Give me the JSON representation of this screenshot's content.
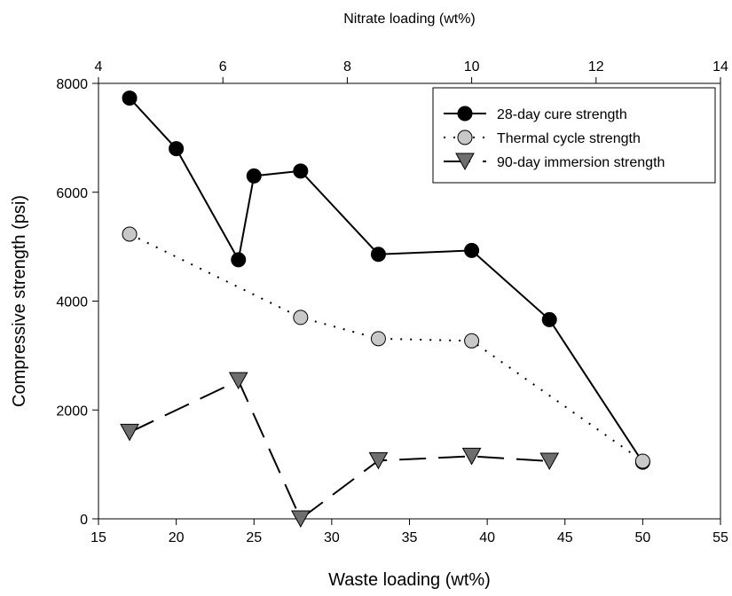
{
  "chart_data": {
    "type": "line",
    "xlabel": "Waste loading (wt%)",
    "ylabel": "Compressive strength (psi)",
    "x2label": "Nitrate loading (wt%)",
    "xlim": [
      15,
      55
    ],
    "ylim": [
      0,
      8000
    ],
    "x2lim": [
      4,
      14
    ],
    "x_ticks": [
      15,
      20,
      25,
      30,
      35,
      40,
      45,
      50,
      55
    ],
    "y_ticks": [
      0,
      2000,
      4000,
      6000,
      8000
    ],
    "x2_ticks": [
      4,
      6,
      8,
      10,
      12,
      14
    ],
    "grid": false,
    "legend_position": "top-right",
    "series": [
      {
        "name": "28-day cure strength",
        "line_style": "solid",
        "marker": "circle",
        "marker_color": "#000000",
        "x": [
          17,
          20,
          24,
          25,
          28,
          33,
          39,
          44,
          50
        ],
        "y": [
          7730,
          6800,
          4760,
          6300,
          6390,
          4860,
          4930,
          3660,
          1040
        ]
      },
      {
        "name": "Thermal cycle strength",
        "line_style": "dotted",
        "marker": "circle",
        "marker_color": "#c8c8c8",
        "x": [
          17,
          28,
          33,
          39,
          50
        ],
        "y": [
          5230,
          3700,
          3310,
          3270,
          1060
        ]
      },
      {
        "name": "90-day immersion strength",
        "line_style": "dashed",
        "marker": "triangle-down",
        "marker_color": "#6e6e6e",
        "x": [
          17,
          24,
          28,
          33,
          39,
          44
        ],
        "y": [
          1590,
          2540,
          0,
          1070,
          1150,
          1060
        ]
      }
    ]
  }
}
